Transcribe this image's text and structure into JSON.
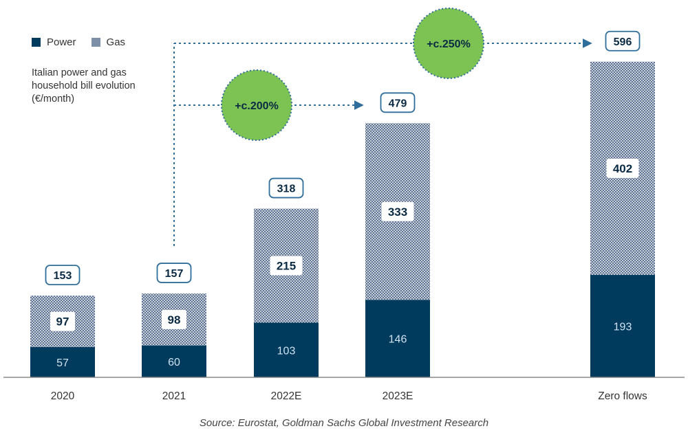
{
  "chart_data": {
    "type": "bar",
    "stacked": true,
    "subtitle": "Italian power and gas household bill evolution (€/month)",
    "categories": [
      "2020",
      "2021",
      "2022E",
      "2023E",
      "Zero flows"
    ],
    "series": [
      {
        "name": "Power",
        "values": [
          57,
          60,
          103,
          146,
          193
        ],
        "color": "#003a5d"
      },
      {
        "name": "Gas",
        "values": [
          97,
          98,
          215,
          333,
          402
        ],
        "color": "#7d8fa6"
      }
    ],
    "totals": [
      "153",
      "157",
      "318",
      "479",
      "596"
    ],
    "annotations": [
      {
        "label": "+c.200%",
        "from": "2021",
        "to": "2023E"
      },
      {
        "label": "+c.250%",
        "from": "2021",
        "to": "Zero flows"
      }
    ],
    "ylim": [
      0,
      600
    ],
    "legend_position": "top-left",
    "source": "Source: Eurostat, Goldman Sachs Global Investment Research"
  },
  "colors": {
    "power": "#003a5d",
    "gas_pattern": "#8a9bb1",
    "total_border": "#2f6e9b",
    "circle": "#7cc354",
    "arrow": "#2f6e9b",
    "axis": "#777777"
  }
}
